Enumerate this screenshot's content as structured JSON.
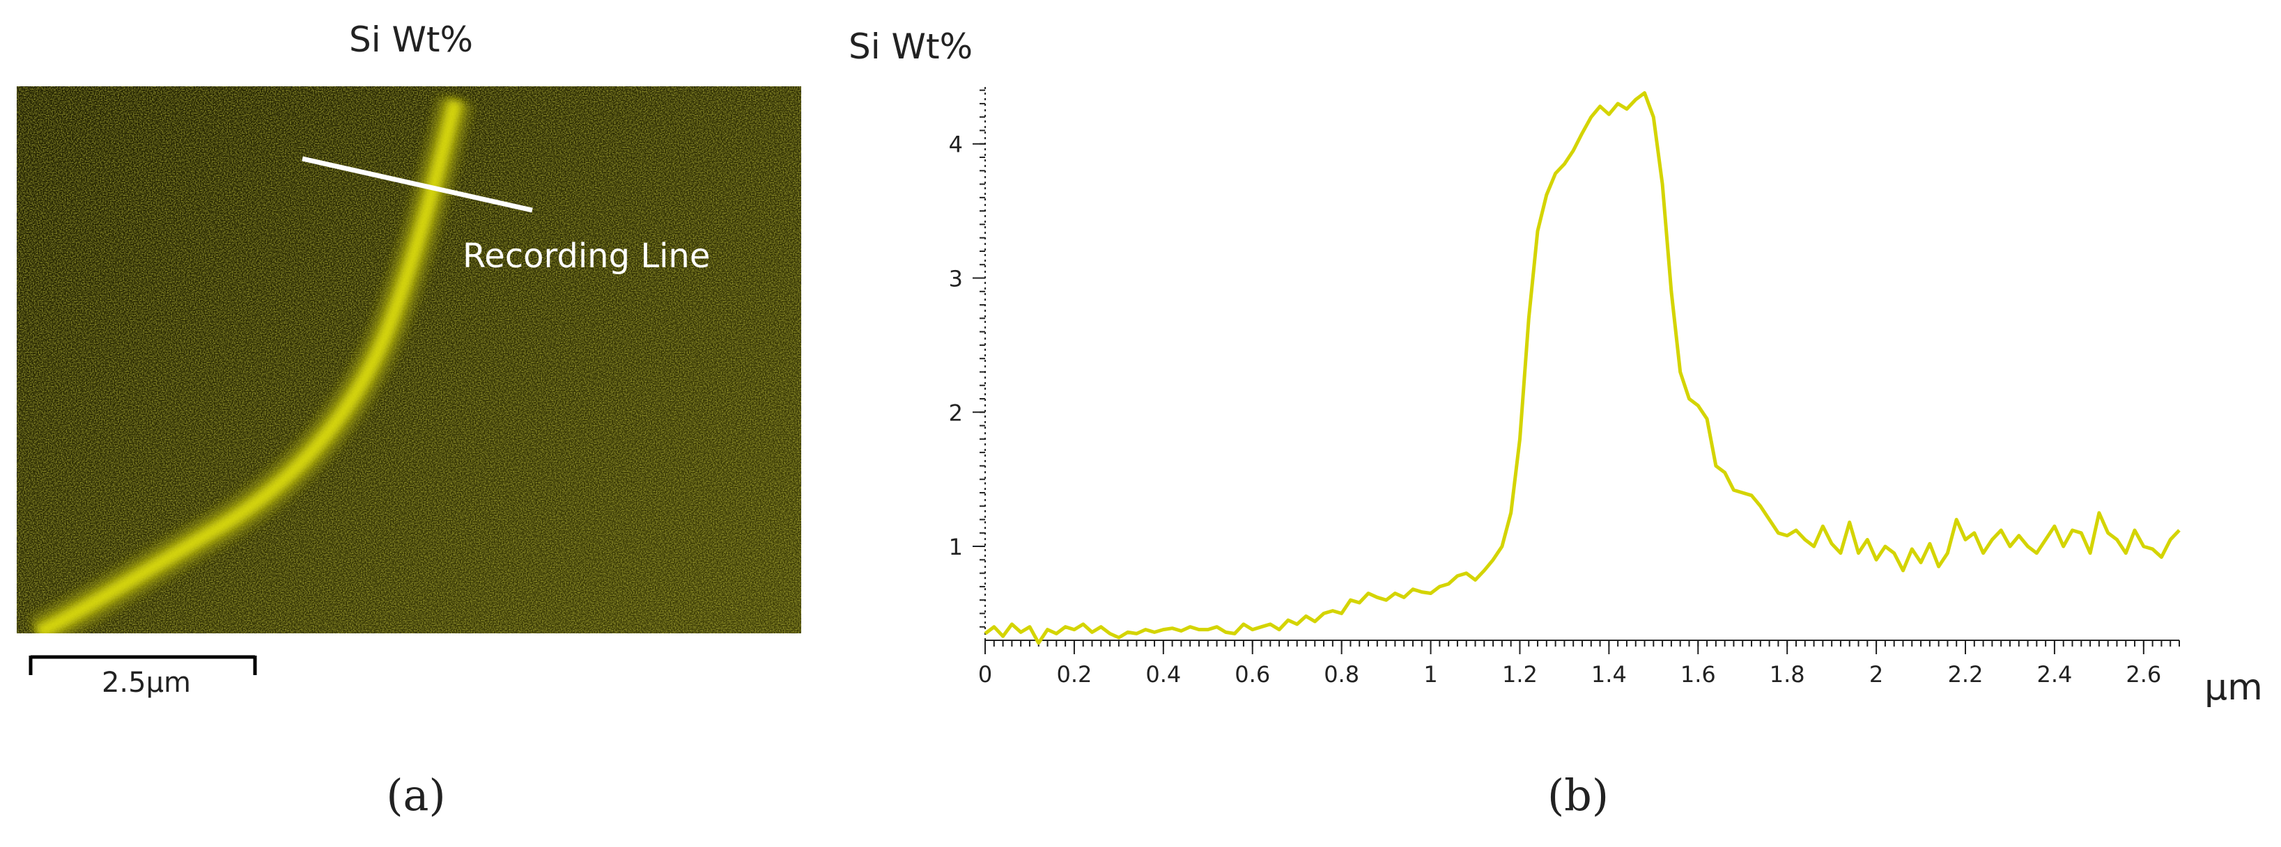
{
  "panel_a": {
    "title": "Si Wt%",
    "annotation": "Recording Line",
    "scale_bar_label": "2.5µm",
    "caption": "(a)"
  },
  "panel_b": {
    "caption": "(b)"
  },
  "colors": {
    "line": "#d4d400",
    "map_dark": "#1f1f00",
    "map_mid": "#4a4a08",
    "map_bright": "#f2f20e",
    "axis": "#222222"
  },
  "chart_data": {
    "type": "line",
    "title": "",
    "ylabel": "Si Wt%",
    "xlabel": "µm",
    "xlim": [
      0,
      2.68
    ],
    "ylim": [
      0.3,
      4.45
    ],
    "x_ticks": [
      0,
      0.2,
      0.4,
      0.6,
      0.8,
      1,
      1.2,
      1.4,
      1.6,
      1.8,
      2,
      2.2,
      2.4,
      2.6
    ],
    "x_tick_labels": [
      "0",
      "0.2",
      "0.4",
      "0.6",
      "0.8",
      "1",
      "1.2",
      "1.4",
      "1.6",
      "1.8",
      "2",
      "2.2",
      "2.4",
      "2.6"
    ],
    "y_ticks": [
      1,
      2,
      3,
      4
    ],
    "y_tick_labels": [
      "1",
      "2",
      "3",
      "4"
    ],
    "grid": false,
    "legend": "none",
    "series": [
      {
        "name": "Si Wt%",
        "x": [
          0,
          0.02,
          0.04,
          0.06,
          0.08,
          0.1,
          0.12,
          0.14,
          0.16,
          0.18,
          0.2,
          0.22,
          0.24,
          0.26,
          0.28,
          0.3,
          0.32,
          0.34,
          0.36,
          0.38,
          0.4,
          0.42,
          0.44,
          0.46,
          0.48,
          0.5,
          0.52,
          0.54,
          0.56,
          0.58,
          0.6,
          0.62,
          0.64,
          0.66,
          0.68,
          0.7,
          0.72,
          0.74,
          0.76,
          0.78,
          0.8,
          0.82,
          0.84,
          0.86,
          0.88,
          0.9,
          0.92,
          0.94,
          0.96,
          0.98,
          1.0,
          1.02,
          1.04,
          1.06,
          1.08,
          1.1,
          1.12,
          1.14,
          1.16,
          1.18,
          1.2,
          1.22,
          1.24,
          1.26,
          1.28,
          1.3,
          1.32,
          1.34,
          1.36,
          1.38,
          1.4,
          1.42,
          1.44,
          1.46,
          1.48,
          1.5,
          1.52,
          1.54,
          1.56,
          1.58,
          1.6,
          1.62,
          1.64,
          1.66,
          1.68,
          1.7,
          1.72,
          1.74,
          1.76,
          1.78,
          1.8,
          1.82,
          1.84,
          1.86,
          1.88,
          1.9,
          1.92,
          1.94,
          1.96,
          1.98,
          2.0,
          2.02,
          2.04,
          2.06,
          2.08,
          2.1,
          2.12,
          2.14,
          2.16,
          2.18,
          2.2,
          2.22,
          2.24,
          2.26,
          2.28,
          2.3,
          2.32,
          2.34,
          2.36,
          2.38,
          2.4,
          2.42,
          2.44,
          2.46,
          2.48,
          2.5,
          2.52,
          2.54,
          2.56,
          2.58,
          2.6,
          2.62,
          2.64,
          2.66,
          2.68
        ],
        "y": [
          0.35,
          0.4,
          0.33,
          0.42,
          0.36,
          0.4,
          0.28,
          0.38,
          0.35,
          0.4,
          0.38,
          0.42,
          0.36,
          0.4,
          0.35,
          0.32,
          0.36,
          0.35,
          0.38,
          0.36,
          0.38,
          0.39,
          0.37,
          0.4,
          0.38,
          0.38,
          0.4,
          0.36,
          0.35,
          0.42,
          0.38,
          0.4,
          0.42,
          0.38,
          0.45,
          0.42,
          0.48,
          0.44,
          0.5,
          0.52,
          0.5,
          0.6,
          0.58,
          0.65,
          0.62,
          0.6,
          0.65,
          0.62,
          0.68,
          0.66,
          0.65,
          0.7,
          0.72,
          0.78,
          0.8,
          0.75,
          0.82,
          0.9,
          1.0,
          1.25,
          1.8,
          2.7,
          3.35,
          3.62,
          3.78,
          3.85,
          3.95,
          4.08,
          4.2,
          4.28,
          4.22,
          4.3,
          4.26,
          4.33,
          4.38,
          4.2,
          3.7,
          2.9,
          2.3,
          2.1,
          2.05,
          1.95,
          1.6,
          1.55,
          1.42,
          1.4,
          1.38,
          1.3,
          1.2,
          1.1,
          1.08,
          1.12,
          1.05,
          1.0,
          1.15,
          1.02,
          0.95,
          1.18,
          0.95,
          1.05,
          0.9,
          1.0,
          0.95,
          0.82,
          0.98,
          0.88,
          1.02,
          0.85,
          0.95,
          1.2,
          1.05,
          1.1,
          0.95,
          1.05,
          1.12,
          1.0,
          1.08,
          1.0,
          0.95,
          1.05,
          1.15,
          1.0,
          1.12,
          1.1,
          0.95,
          1.25,
          1.1,
          1.05,
          0.95,
          1.12,
          1.0,
          0.98,
          0.92,
          1.05,
          1.12
        ]
      }
    ]
  }
}
